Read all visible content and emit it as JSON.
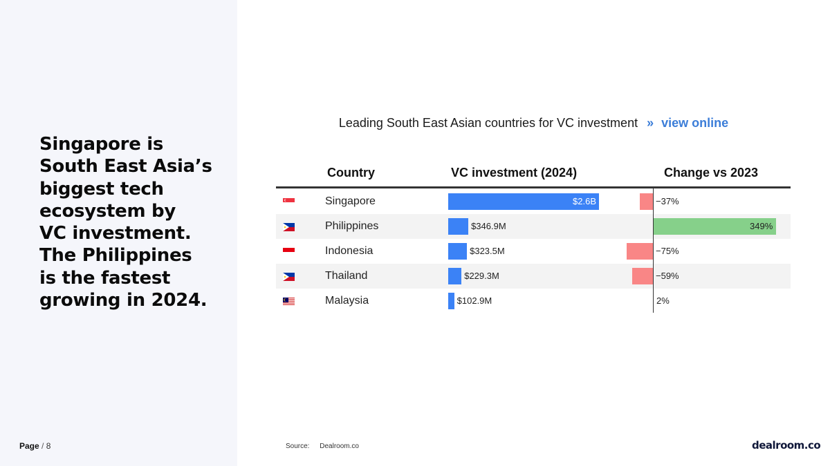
{
  "headline_lines": [
    "Singapore is",
    "South East Asia’s",
    "biggest tech",
    "ecosystem by",
    "VC investment.",
    "The Philippines",
    "is the fastest",
    "growing in 2024."
  ],
  "footer": {
    "page_label": "Page",
    "page_sep": "/",
    "page_number": "8",
    "source_label": "Source:",
    "source_value": "Dealroom.co",
    "logo": "dealroom.co"
  },
  "title": {
    "text": "Leading South East Asian countries for VC investment",
    "arrow": "»",
    "link": "view online"
  },
  "columns": {
    "country": "Country",
    "investment": "VC investment (2024)",
    "change": "Change vs 2023"
  },
  "colors": {
    "investment_bar": "#3b82f6",
    "negative_change": "#f98686",
    "positive_change": "#86d08a",
    "link": "#3b7dd8"
  },
  "chart_data": {
    "type": "bar",
    "title": "Leading South East Asian countries for VC investment",
    "categories": [
      "Singapore",
      "Philippines",
      "Indonesia",
      "Thailand",
      "Malaysia"
    ],
    "series": [
      {
        "name": "VC investment (2024)",
        "values": [
          2600,
          346.9,
          323.5,
          229.3,
          102.9
        ],
        "unit": "USD millions",
        "labels": [
          "$2.6B",
          "$346.9M",
          "$323.5M",
          "$229.3M",
          "$102.9M"
        ]
      },
      {
        "name": "Change vs 2023",
        "values": [
          -37,
          349,
          -75,
          -59,
          2
        ],
        "unit": "percent",
        "labels": [
          "−37%",
          "349%",
          "−75%",
          "−59%",
          "2%"
        ]
      }
    ],
    "flags": [
      "singapore-flag-icon",
      "philippines-flag-icon",
      "indonesia-flag-icon",
      "philippines-flag-icon",
      "malaysia-flag-icon"
    ]
  }
}
